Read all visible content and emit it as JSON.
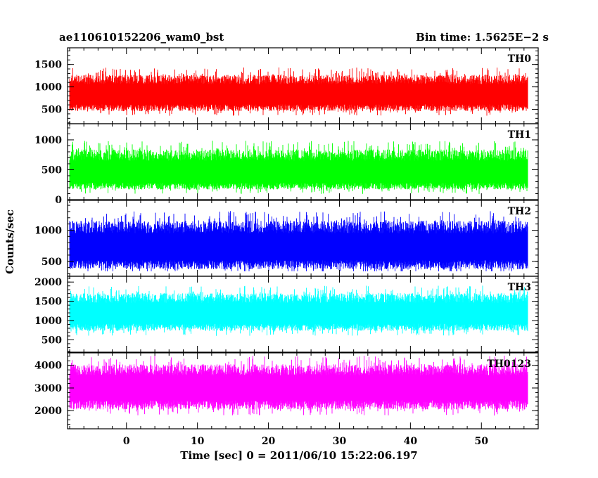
{
  "header": {
    "title_left": "ae110610152206_wam0_bst",
    "title_right": "Bin time: 1.5625E−2 s"
  },
  "axes": {
    "xlabel": "Time [sec] 0 = 2011/06/10 15:22:06.197",
    "ylabel": "Counts/sec"
  },
  "chart_data": {
    "type": "line",
    "title": "ae110610152206_wam0_bst",
    "subtitle": "Bin time: 1.5625E−2 s",
    "xlabel": "Time [sec] 0 = 2011/06/10 15:22:06.197",
    "ylabel": "Counts/sec",
    "xlim": [
      -8.3,
      58
    ],
    "x_start": -8.0,
    "x_end": 56.5,
    "bin_time": 0.015625,
    "x_ticks": [
      0,
      10,
      20,
      30,
      40,
      50
    ],
    "grid": false,
    "panels": [
      {
        "name": "TH0",
        "color": "#ff0000",
        "ylim": [
          180,
          1870
        ],
        "y_ticks": [
          500,
          1000,
          1500
        ],
        "mean": 800,
        "noise_low": 340,
        "noise_high": 470,
        "floor": 250,
        "ceiling": 1870
      },
      {
        "name": "TH1",
        "color": "#00ff00",
        "ylim": [
          0,
          1270
        ],
        "y_ticks": [
          0,
          500,
          1000
        ],
        "mean": 420,
        "noise_low": 250,
        "noise_high": 420,
        "floor": 40,
        "ceiling": 1270
      },
      {
        "name": "TH2",
        "color": "#0000ff",
        "ylim": [
          260,
          1480
        ],
        "y_ticks": [
          500,
          1000
        ],
        "mean": 700,
        "noise_low": 330,
        "noise_high": 450,
        "floor": 340,
        "ceiling": 1480
      },
      {
        "name": "TH3",
        "color": "#00ffff",
        "ylim": [
          180,
          2150
        ],
        "y_ticks": [
          500,
          1000,
          1500,
          2000
        ],
        "mean": 1150,
        "noise_low": 420,
        "noise_high": 560,
        "floor": 420,
        "ceiling": 2150
      },
      {
        "name": "TH0123",
        "color": "#ff00ff",
        "ylim": [
          1200,
          4550
        ],
        "y_ticks": [
          2000,
          3000,
          4000
        ],
        "mean": 2950,
        "noise_low": 900,
        "noise_high": 1100,
        "floor": 1350,
        "ceiling": 4550
      }
    ]
  }
}
